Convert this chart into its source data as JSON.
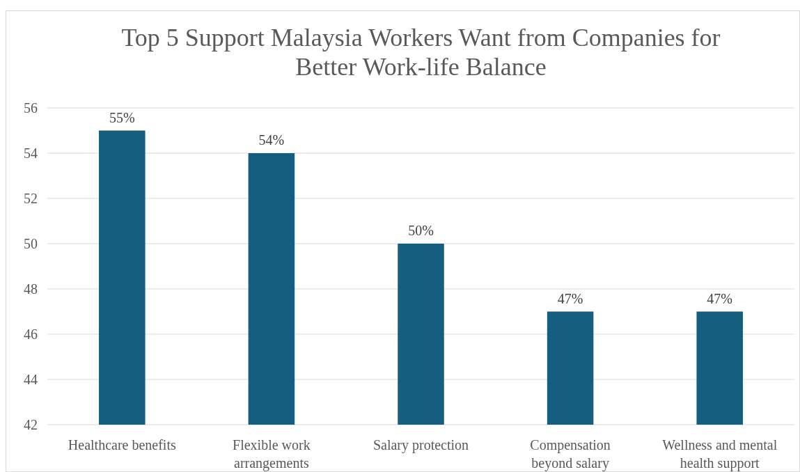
{
  "chart_data": {
    "type": "bar",
    "title": "Top 5 Support Malaysia Workers Want from Companies for Better Work-life Balance",
    "categories": [
      "Healthcare benefits",
      "Flexible work arrangements",
      "Salary protection",
      "Compensation beyond salary",
      "Wellness and mental health support"
    ],
    "values": [
      55,
      54,
      50,
      47,
      47
    ],
    "value_labels": [
      "55%",
      "54%",
      "50%",
      "47%",
      "47%"
    ],
    "color": "#165e80",
    "ylim": [
      42,
      56
    ],
    "yticks": [
      42,
      44,
      46,
      48,
      50,
      52,
      54,
      56
    ],
    "grid": "y"
  }
}
